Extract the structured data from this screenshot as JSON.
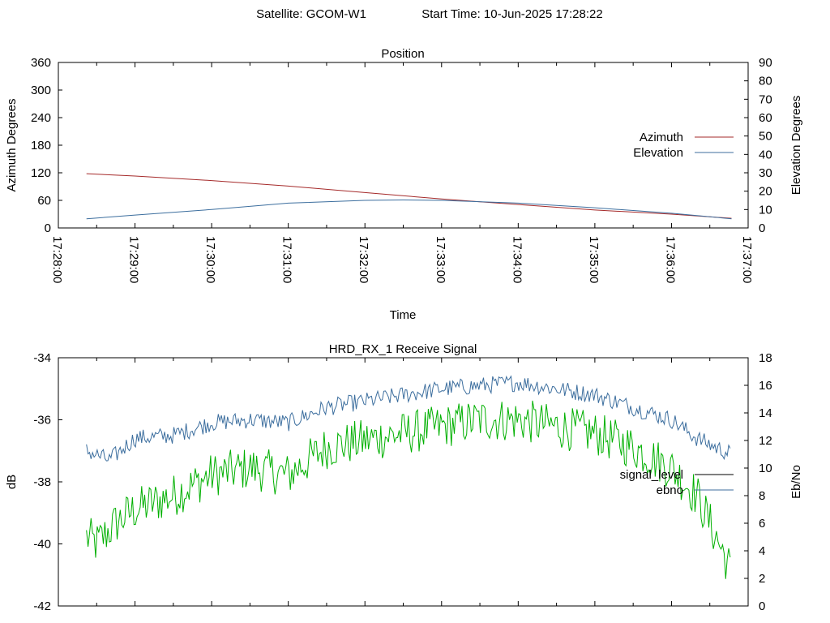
{
  "header": {
    "satellite": "Satellite: GCOM-W1",
    "start_time": "Start Time: 10-Jun-2025 17:28:22"
  },
  "colors": {
    "azimuth": "#a52a2a",
    "elevation": "#3c6e9e",
    "ebno": "#3c6e9e",
    "signal_level": "#00b000",
    "axis": "#000000"
  },
  "chart_data": [
    {
      "type": "line",
      "title": "Position",
      "xlabel": "Time",
      "ylabel": "Azimuth Degrees",
      "y2label": "Elevation Degrees",
      "xlim": [
        "17:28:00",
        "17:37:00"
      ],
      "x_ticks": [
        "17:28:00",
        "17:29:00",
        "17:30:00",
        "17:31:00",
        "17:32:00",
        "17:33:00",
        "17:34:00",
        "17:35:00",
        "17:36:00",
        "17:37:00"
      ],
      "ylim": [
        0,
        360
      ],
      "y_ticks": [
        0,
        60,
        120,
        180,
        240,
        300,
        360
      ],
      "y2lim": [
        0,
        90
      ],
      "y2_ticks": [
        0,
        10,
        20,
        30,
        40,
        50,
        60,
        70,
        80,
        90
      ],
      "grid": false,
      "legend": "right",
      "series": [
        {
          "name": "Azimuth",
          "axis": "y",
          "x": [
            "17:28:22",
            "17:29:00",
            "17:30:00",
            "17:31:00",
            "17:32:00",
            "17:33:00",
            "17:33:30",
            "17:34:00",
            "17:35:00",
            "17:36:00",
            "17:36:47"
          ],
          "values": [
            118,
            113,
            103,
            91,
            77,
            63,
            57,
            51,
            39,
            30,
            21
          ]
        },
        {
          "name": "Elevation",
          "axis": "y2",
          "x": [
            "17:28:22",
            "17:29:00",
            "17:30:00",
            "17:31:00",
            "17:32:00",
            "17:32:30",
            "17:33:00",
            "17:34:00",
            "17:35:00",
            "17:36:00",
            "17:36:47"
          ],
          "values": [
            5,
            7,
            10,
            13.5,
            15,
            15.2,
            15,
            13.5,
            11,
            8,
            5
          ]
        }
      ]
    },
    {
      "type": "line",
      "title": "HRD_RX_1 Receive Signal",
      "ylabel": "dB",
      "y2label": "Eb/No",
      "xlim": [
        "17:28:00",
        "17:37:00"
      ],
      "ylim": [
        -42,
        -34
      ],
      "y_ticks": [
        -42,
        -40,
        -38,
        -36,
        -34
      ],
      "y2lim": [
        0,
        18
      ],
      "y2_ticks": [
        0,
        2,
        4,
        6,
        8,
        10,
        12,
        14,
        16,
        18
      ],
      "grid": false,
      "legend": "right",
      "series": [
        {
          "name": "signal_level",
          "axis": "y2",
          "x": [
            "17:28:22",
            "17:28:30",
            "17:28:45",
            "17:29:00",
            "17:29:30",
            "17:30:00",
            "17:30:30",
            "17:31:00",
            "17:31:30",
            "17:32:00",
            "17:32:30",
            "17:33:00",
            "17:33:30",
            "17:34:00",
            "17:34:30",
            "17:35:00",
            "17:35:30",
            "17:36:00",
            "17:36:20",
            "17:36:35",
            "17:36:47"
          ],
          "values": [
            5,
            4.5,
            6,
            7,
            8,
            9.5,
            10,
            9.5,
            11.5,
            12,
            12.5,
            13,
            13.5,
            13.5,
            13,
            12.5,
            11.5,
            10,
            8,
            5,
            2.5
          ]
        },
        {
          "name": "ebno",
          "axis": "y",
          "x": [
            "17:28:22",
            "17:28:40",
            "17:29:00",
            "17:29:30",
            "17:30:00",
            "17:30:30",
            "17:31:00",
            "17:31:30",
            "17:32:00",
            "17:32:30",
            "17:33:00",
            "17:33:30",
            "17:34:00",
            "17:34:30",
            "17:35:00",
            "17:35:30",
            "17:36:00",
            "17:36:20",
            "17:36:35",
            "17:36:47"
          ],
          "values": [
            -37.0,
            -37.3,
            -36.6,
            -36.5,
            -36.1,
            -36.0,
            -36.1,
            -35.6,
            -35.4,
            -35.2,
            -35.0,
            -34.9,
            -34.8,
            -35.0,
            -35.2,
            -35.6,
            -36.0,
            -36.6,
            -36.9,
            -37.1
          ]
        }
      ]
    }
  ]
}
